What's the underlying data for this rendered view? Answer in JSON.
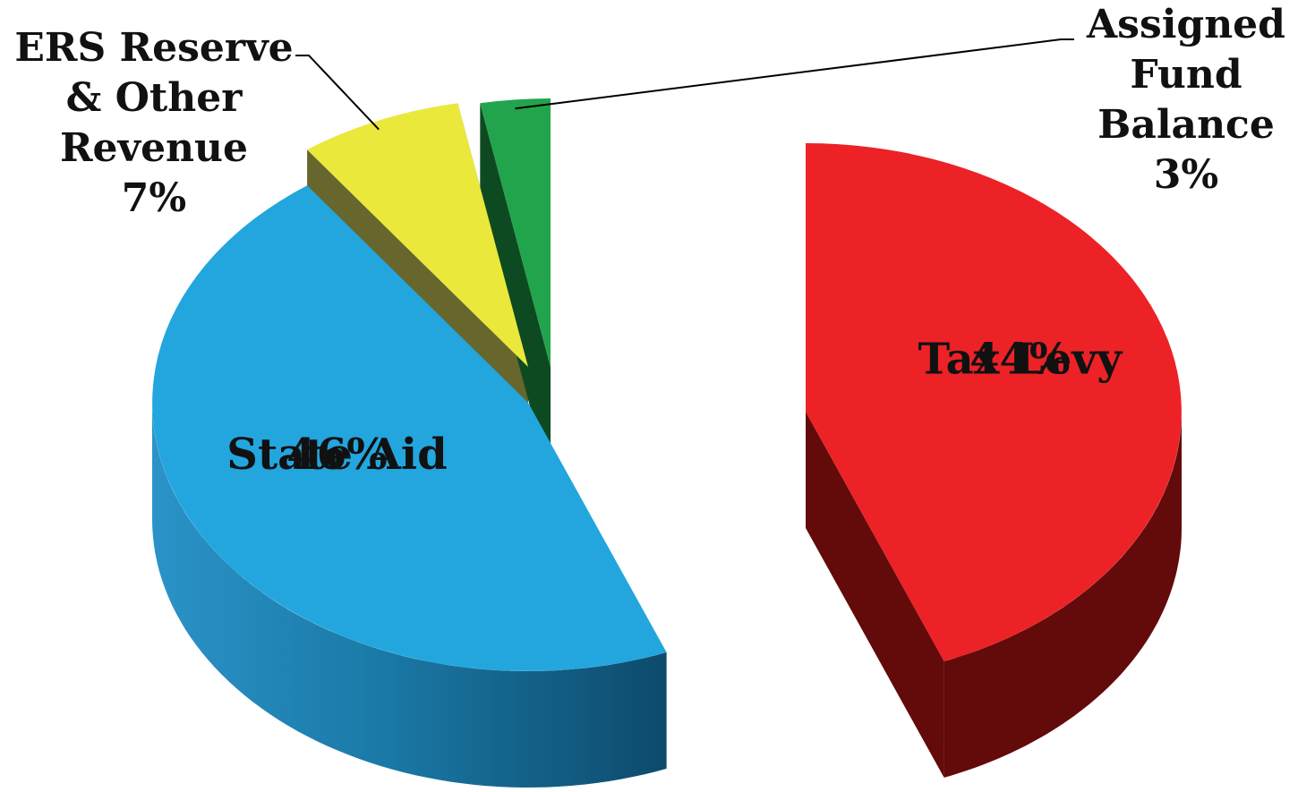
{
  "chart_data": {
    "type": "pie",
    "style": "3d-exploded",
    "title": "",
    "slices": [
      {
        "name": "Tax Levy",
        "value": 44,
        "percent_label": "44%",
        "color": "#EC2227",
        "side_color": "#630A0A",
        "label_position": "inside"
      },
      {
        "name": "State Aid",
        "value": 46,
        "percent_label": "46%",
        "color": "#23A6DE",
        "side_color": "#176E98",
        "label_position": "inside"
      },
      {
        "name": "ERS Reserve & Other Revenue",
        "value": 7,
        "percent_label": "7%",
        "color": "#EAE83B",
        "side_color": "#67662C",
        "label_position": "outside-left",
        "label_lines": [
          "ERS Reserve",
          "& Other",
          "Revenue"
        ]
      },
      {
        "name": "Assigned Fund Balance",
        "value": 3,
        "percent_label": "3%",
        "color": "#22A44C",
        "side_color": "#0E4A21",
        "label_position": "outside-right",
        "label_lines": [
          "Assigned",
          "Fund",
          "Balance"
        ]
      }
    ]
  }
}
